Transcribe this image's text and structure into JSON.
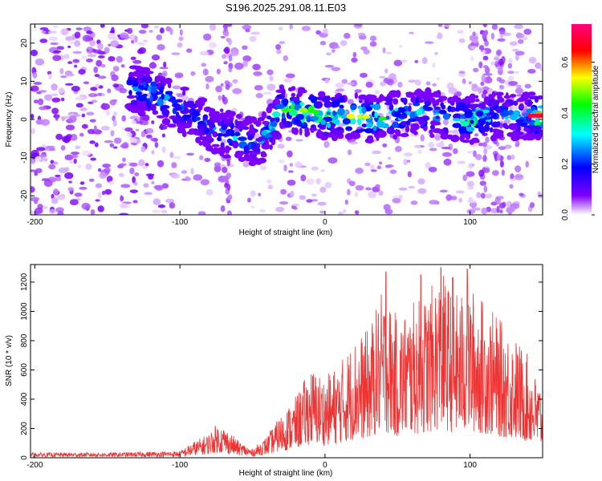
{
  "title": "S196.2025.291.08.11.E03",
  "chart_data": [
    {
      "type": "heatmap",
      "name": "spectrogram",
      "xlabel": "Height of straight line (km)",
      "ylabel": "Frequency (Hz)",
      "xlim": [
        -203,
        150
      ],
      "ylim": [
        -25,
        25
      ],
      "xticks": [
        -200,
        -100,
        0,
        100
      ],
      "yticks": [
        -20,
        -10,
        0,
        10,
        20
      ],
      "colorbar": {
        "label": "Normalized spectral amplitude",
        "range": [
          0.0,
          0.75
        ],
        "ticks": [
          0.0,
          0.2,
          0.4,
          0.6
        ],
        "stops": [
          "#ffffff",
          "#8000ff",
          "#0000ff",
          "#00ffff",
          "#00ff00",
          "#ffff00",
          "#ff0000",
          "#ff0080"
        ]
      },
      "ridge": {
        "x": [
          -135,
          -120,
          -100,
          -80,
          -60,
          -45,
          -30,
          -15,
          0,
          15,
          30,
          45,
          60,
          80,
          100,
          120,
          140,
          150
        ],
        "freq": [
          8,
          7,
          3,
          -2,
          -5,
          -6,
          3,
          2,
          1,
          1,
          0,
          1,
          2,
          1,
          0,
          1,
          1,
          1
        ],
        "amplitude": [
          0.25,
          0.35,
          0.3,
          0.25,
          0.3,
          0.25,
          0.45,
          0.5,
          0.5,
          0.5,
          0.6,
          0.4,
          0.35,
          0.3,
          0.45,
          0.35,
          0.3,
          0.75
        ]
      }
    },
    {
      "type": "line",
      "name": "snr",
      "xlabel": "Height of straight line (km)",
      "ylabel": "SNR (10 * v/v)",
      "xlim": [
        -203,
        150
      ],
      "ylim": [
        0,
        1320
      ],
      "xticks": [
        -200,
        -100,
        0,
        100
      ],
      "yticks": [
        0,
        200,
        400,
        600,
        800,
        1000,
        1200
      ],
      "color": "#ee3333",
      "envelope_x": [
        -203,
        -150,
        -100,
        -90,
        -80,
        -75,
        -70,
        -60,
        -50,
        -40,
        -30,
        -20,
        -10,
        0,
        10,
        20,
        30,
        40,
        50,
        60,
        70,
        80,
        90,
        100,
        110,
        120,
        130,
        140,
        145,
        150
      ],
      "envelope_max": [
        30,
        30,
        40,
        110,
        170,
        230,
        220,
        120,
        60,
        150,
        300,
        420,
        620,
        560,
        650,
        820,
        880,
        1160,
        960,
        1060,
        1120,
        1280,
        1120,
        1180,
        1080,
        950,
        850,
        700,
        560,
        480
      ],
      "peaks": [
        {
          "x": 42,
          "y": 1270
        },
        {
          "x": 80,
          "y": 1300
        },
        {
          "x": 88,
          "y": 1230
        },
        {
          "x": 98,
          "y": 1290
        },
        {
          "x": 66,
          "y": 1250
        }
      ]
    }
  ]
}
